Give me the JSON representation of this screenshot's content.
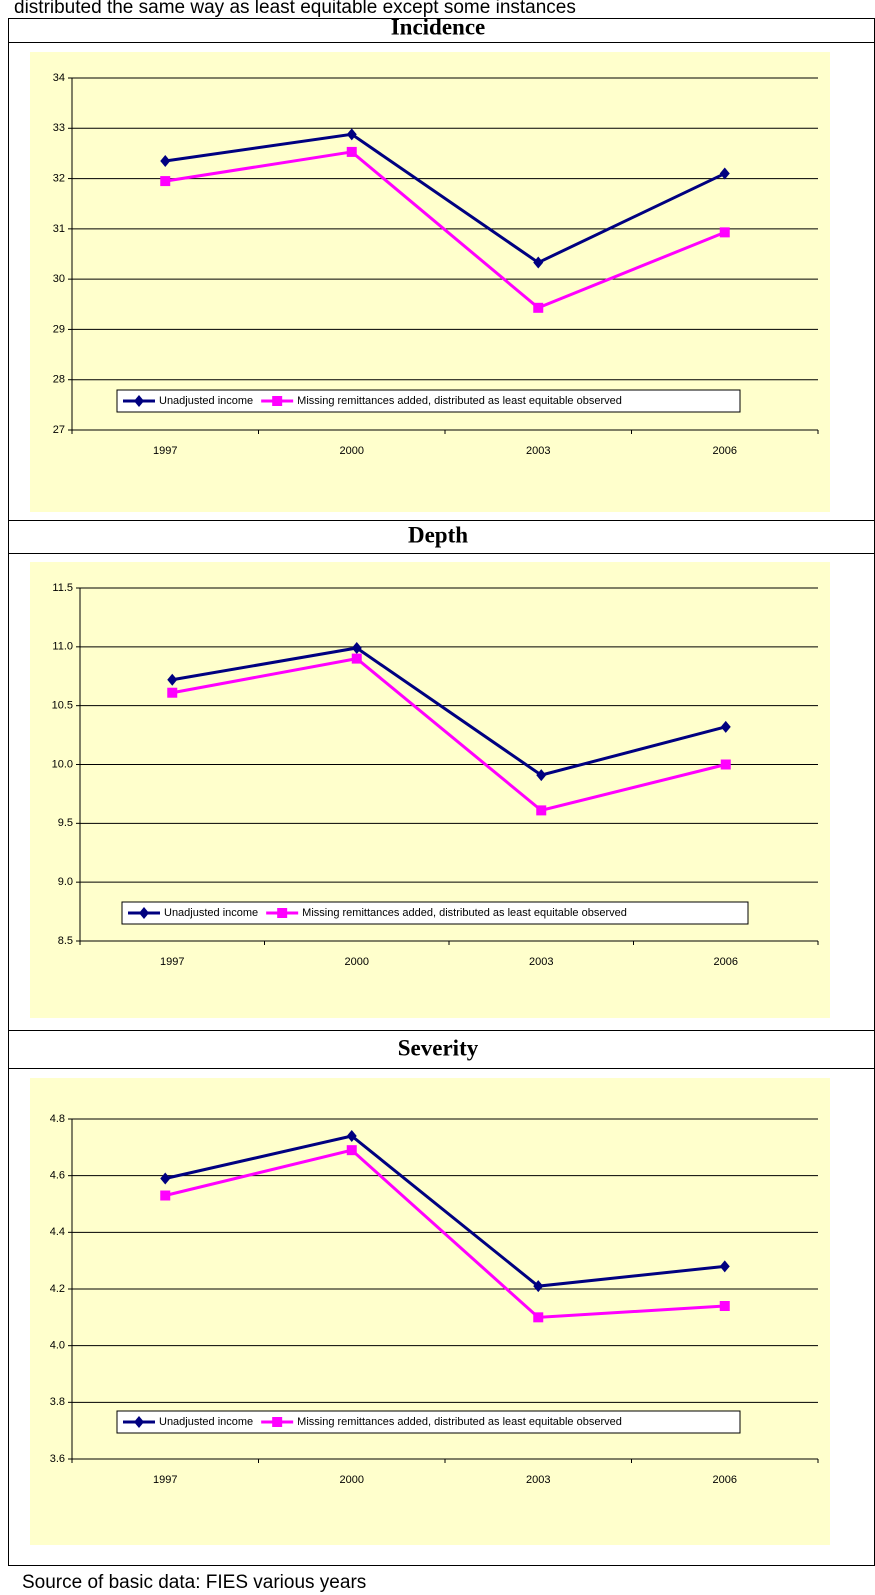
{
  "top_text": "distributed the same way as least equitable except some instances",
  "source": "Source of basic data: FIES various years",
  "chart_data": [
    {
      "type": "line",
      "title": "Incidence",
      "categories": [
        "1997",
        "2000",
        "2003",
        "2006"
      ],
      "series": [
        {
          "name": "Unadjusted income",
          "color": "#000080",
          "marker": "diamond",
          "values": [
            32.35,
            32.88,
            30.33,
            32.1
          ]
        },
        {
          "name": "Missing remittances added, distributed as least equitable observed",
          "color": "#ff00ff",
          "marker": "square",
          "values": [
            31.95,
            32.53,
            29.43,
            30.93
          ]
        }
      ],
      "ylim": [
        27,
        34
      ],
      "yticks": [
        27,
        28,
        29,
        30,
        31,
        32,
        33,
        34
      ],
      "grid": true,
      "background": "#ffffcc"
    },
    {
      "type": "line",
      "title": "Depth",
      "categories": [
        "1997",
        "2000",
        "2003",
        "2006"
      ],
      "series": [
        {
          "name": "Unadjusted income",
          "color": "#000080",
          "marker": "diamond",
          "values": [
            10.72,
            10.99,
            9.91,
            10.32
          ]
        },
        {
          "name": "Missing remittances added, distributed as least equitable observed",
          "color": "#ff00ff",
          "marker": "square",
          "values": [
            10.61,
            10.9,
            9.61,
            10.0
          ]
        }
      ],
      "ylim": [
        8.5,
        11.5
      ],
      "yticks": [
        8.5,
        {
          "value": 9,
          "label": "9.0"
        },
        9.5,
        {
          "value": 10,
          "label": "10.0"
        },
        10.5,
        {
          "value": 11,
          "label": "11.0"
        },
        11.5
      ],
      "grid": true,
      "background": "#ffffcc"
    },
    {
      "type": "line",
      "title": "Severity",
      "categories": [
        "1997",
        "2000",
        "2003",
        "2006"
      ],
      "series": [
        {
          "name": "Unadjusted income",
          "color": "#000080",
          "marker": "diamond",
          "values": [
            4.59,
            4.74,
            4.21,
            4.28
          ]
        },
        {
          "name": "Missing remittances added, distributed as least equitable observed",
          "color": "#ff00ff",
          "marker": "square",
          "values": [
            4.53,
            4.69,
            4.1,
            4.14
          ]
        }
      ],
      "ylim": [
        3.6,
        4.8
      ],
      "yticks": [
        3.6,
        3.8,
        {
          "value": 4,
          "label": "4.0"
        },
        4.2,
        4.4,
        4.6,
        4.8
      ],
      "grid": true,
      "background": "#ffffcc"
    }
  ]
}
